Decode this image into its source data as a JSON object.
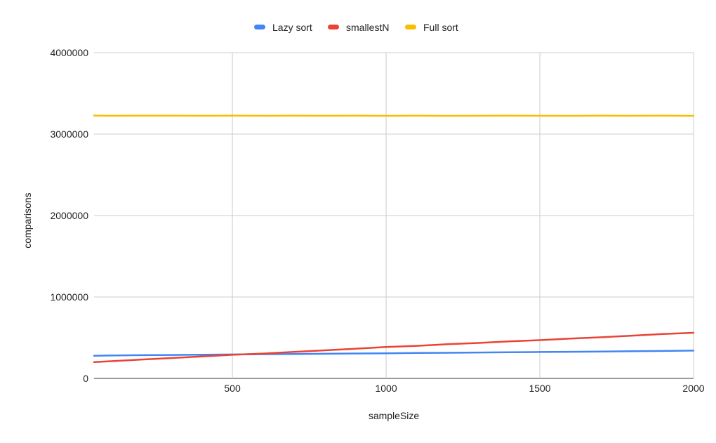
{
  "chart_data": {
    "type": "line",
    "title": "",
    "xlabel": "sampleSize",
    "ylabel": "comparisons",
    "xlim": [
      50,
      2000
    ],
    "ylim": [
      0,
      4000000
    ],
    "x_ticks": [
      500,
      1000,
      1500,
      2000
    ],
    "y_ticks": [
      0,
      1000000,
      2000000,
      3000000,
      4000000
    ],
    "x_tick_labels": [
      "500",
      "1000",
      "1500",
      "2000"
    ],
    "y_tick_labels": [
      "0",
      "1000000",
      "2000000",
      "3000000",
      "4000000"
    ],
    "grid": true,
    "legend_position": "top",
    "x": [
      50,
      100,
      200,
      300,
      400,
      500,
      600,
      700,
      800,
      900,
      1000,
      1100,
      1200,
      1300,
      1400,
      1500,
      1600,
      1700,
      1800,
      1900,
      2000
    ],
    "series": [
      {
        "name": "Lazy sort",
        "color": "#4285f4",
        "values": [
          278000,
          281000,
          285000,
          288000,
          291000,
          294000,
          297000,
          300000,
          303000,
          306000,
          309000,
          312000,
          315000,
          318000,
          321000,
          324000,
          327000,
          330000,
          334000,
          337000,
          341000
        ]
      },
      {
        "name": "smallestN",
        "color": "#ea4335",
        "values": [
          200000,
          210000,
          230000,
          250000,
          270000,
          290000,
          305000,
          325000,
          345000,
          365000,
          385000,
          400000,
          420000,
          435000,
          455000,
          470000,
          490000,
          505000,
          525000,
          545000,
          560000
        ]
      },
      {
        "name": "Full sort",
        "color": "#fbbc04",
        "values": [
          3228000,
          3225000,
          3226000,
          3227000,
          3225000,
          3226000,
          3225000,
          3226000,
          3225000,
          3226000,
          3224000,
          3226000,
          3224000,
          3225000,
          3226000,
          3225000,
          3224000,
          3226000,
          3225000,
          3226000,
          3224000
        ]
      }
    ]
  }
}
